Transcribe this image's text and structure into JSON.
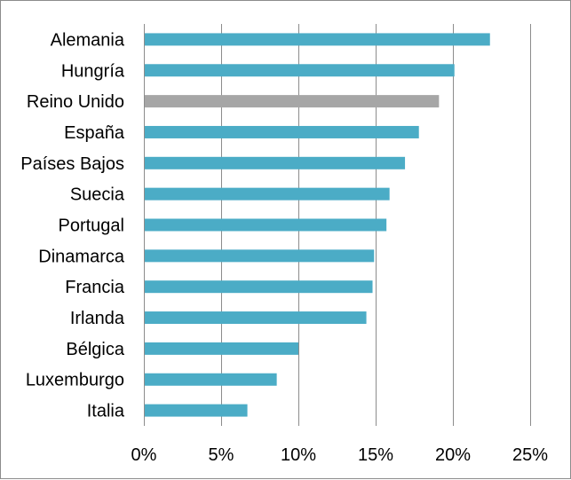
{
  "chart_data": {
    "type": "bar",
    "orientation": "horizontal",
    "categories": [
      "Alemania",
      "Hungría",
      "Reino Unido",
      "España",
      "Países Bajos",
      "Suecia",
      "Portugal",
      "Dinamarca",
      "Francia",
      "Irlanda",
      "Bélgica",
      "Luxemburgo",
      "Italia"
    ],
    "values": [
      22.4,
      20.1,
      19.1,
      17.8,
      16.9,
      15.9,
      15.7,
      14.9,
      14.8,
      14.4,
      10.0,
      8.6,
      6.7
    ],
    "value_unit": "%",
    "xlim": [
      0,
      25
    ],
    "x_ticks": [
      0,
      5,
      10,
      15,
      20,
      25
    ],
    "x_tick_labels": [
      "0%",
      "5%",
      "10%",
      "15%",
      "20%",
      "25%"
    ],
    "grid": "vertical",
    "legend": "none",
    "colors": {
      "default_bar": "#4bacc6",
      "highlight_bar": "#a6a6a6",
      "gridline": "#8c8c8c",
      "border": "#8c8c8c"
    },
    "highlighted_category": "Reino Unido"
  }
}
